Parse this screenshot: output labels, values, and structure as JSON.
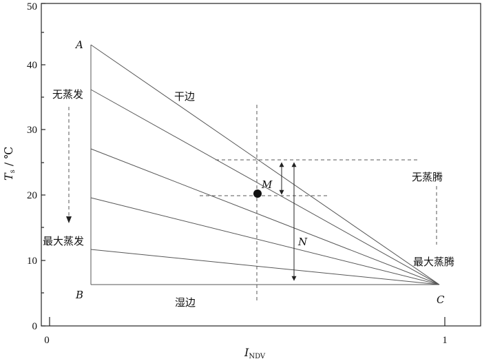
{
  "diagram": {
    "y_axis": {
      "label_main": "T",
      "label_sub": "s",
      "label_unit": " / ℃",
      "ticks": [
        "0",
        "10",
        "20",
        "30",
        "40",
        "50"
      ]
    },
    "x_axis": {
      "label_main": "I",
      "label_sub": "NDV",
      "ticks": [
        "0",
        "1"
      ]
    },
    "points": {
      "A": "A",
      "B": "B",
      "C": "C",
      "M": "M",
      "N": "N"
    },
    "labels": {
      "dry_edge": "干边",
      "wet_edge": "湿边",
      "no_evaporation": "无蒸发",
      "max_evaporation": "最大蒸发",
      "no_transpiration": "无蒸腾",
      "max_transpiration": "最大蒸腾"
    },
    "colors": {
      "axis": "#222222",
      "lines": "#555555",
      "text": "#111111"
    }
  }
}
